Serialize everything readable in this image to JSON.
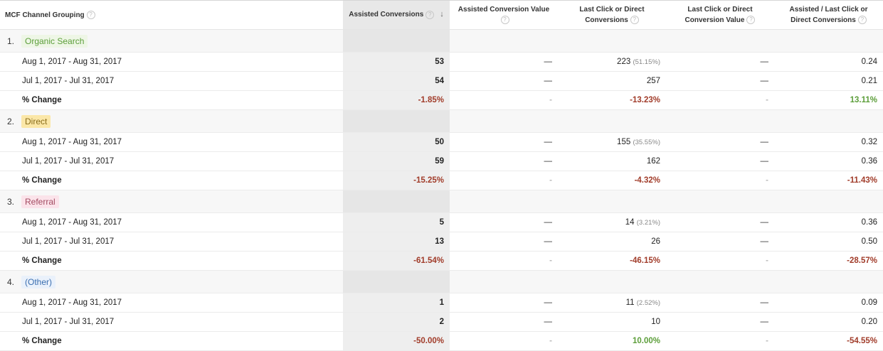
{
  "headers": [
    {
      "label": "MCF Channel Grouping",
      "help": "?"
    },
    {
      "label": "Assisted Conversions",
      "help": "?",
      "sort": "↓"
    },
    {
      "label": "Assisted Conversion Value",
      "help": "?"
    },
    {
      "label": "Last Click or Direct Conversions",
      "help": "?"
    },
    {
      "label": "Last Click or Direct Conversion Value",
      "help": "?"
    },
    {
      "label": "Assisted / Last Click or Direct Conversions",
      "help": "?"
    }
  ],
  "groups": [
    {
      "num": "1.",
      "name": "Organic Search",
      "tag_bg": "#eef6e6",
      "tag_color": "#5c9e3a",
      "rows": [
        {
          "label": "Aug 1, 2017 - Aug 31, 2017",
          "assisted": "53",
          "assisted_value": "—",
          "last_click": "223",
          "last_click_pct": "(51.15%)",
          "last_click_value": "—",
          "ratio": "0.24"
        },
        {
          "label": "Jul 1, 2017 - Jul 31, 2017",
          "assisted": "54",
          "assisted_value": "—",
          "last_click": "257",
          "last_click_pct": "",
          "last_click_value": "—",
          "ratio": "0.21"
        }
      ],
      "change": {
        "label": "% Change",
        "assisted": "-1.85%",
        "assisted_value": "-",
        "last_click": "-13.23%",
        "last_click_value": "-",
        "ratio": "13.11%"
      },
      "change_sign": {
        "assisted": "neg",
        "last_click": "neg",
        "ratio": "pos"
      }
    },
    {
      "num": "2.",
      "name": "Direct",
      "tag_bg": "#fbe7a8",
      "tag_color": "#8a6d1a",
      "rows": [
        {
          "label": "Aug 1, 2017 - Aug 31, 2017",
          "assisted": "50",
          "assisted_value": "—",
          "last_click": "155",
          "last_click_pct": "(35.55%)",
          "last_click_value": "—",
          "ratio": "0.32"
        },
        {
          "label": "Jul 1, 2017 - Jul 31, 2017",
          "assisted": "59",
          "assisted_value": "—",
          "last_click": "162",
          "last_click_pct": "",
          "last_click_value": "—",
          "ratio": "0.36"
        }
      ],
      "change": {
        "label": "% Change",
        "assisted": "-15.25%",
        "assisted_value": "-",
        "last_click": "-4.32%",
        "last_click_value": "-",
        "ratio": "-11.43%"
      },
      "change_sign": {
        "assisted": "neg",
        "last_click": "neg",
        "ratio": "neg"
      }
    },
    {
      "num": "3.",
      "name": "Referral",
      "tag_bg": "#fbe3ea",
      "tag_color": "#a34b62",
      "rows": [
        {
          "label": "Aug 1, 2017 - Aug 31, 2017",
          "assisted": "5",
          "assisted_value": "—",
          "last_click": "14",
          "last_click_pct": "(3.21%)",
          "last_click_value": "—",
          "ratio": "0.36"
        },
        {
          "label": "Jul 1, 2017 - Jul 31, 2017",
          "assisted": "13",
          "assisted_value": "—",
          "last_click": "26",
          "last_click_pct": "",
          "last_click_value": "—",
          "ratio": "0.50"
        }
      ],
      "change": {
        "label": "% Change",
        "assisted": "-61.54%",
        "assisted_value": "-",
        "last_click": "-46.15%",
        "last_click_value": "-",
        "ratio": "-28.57%"
      },
      "change_sign": {
        "assisted": "neg",
        "last_click": "neg",
        "ratio": "neg"
      }
    },
    {
      "num": "4.",
      "name": "(Other)",
      "tag_bg": "#eaf1fb",
      "tag_color": "#3b6fb0",
      "rows": [
        {
          "label": "Aug 1, 2017 - Aug 31, 2017",
          "assisted": "1",
          "assisted_value": "—",
          "last_click": "11",
          "last_click_pct": "(2.52%)",
          "last_click_value": "—",
          "ratio": "0.09"
        },
        {
          "label": "Jul 1, 2017 - Jul 31, 2017",
          "assisted": "2",
          "assisted_value": "—",
          "last_click": "10",
          "last_click_pct": "",
          "last_click_value": "—",
          "ratio": "0.20"
        }
      ],
      "change": {
        "label": "% Change",
        "assisted": "-50.00%",
        "assisted_value": "-",
        "last_click": "10.00%",
        "last_click_value": "-",
        "ratio": "-54.55%"
      },
      "change_sign": {
        "assisted": "neg",
        "last_click": "pos",
        "ratio": "neg"
      }
    }
  ]
}
